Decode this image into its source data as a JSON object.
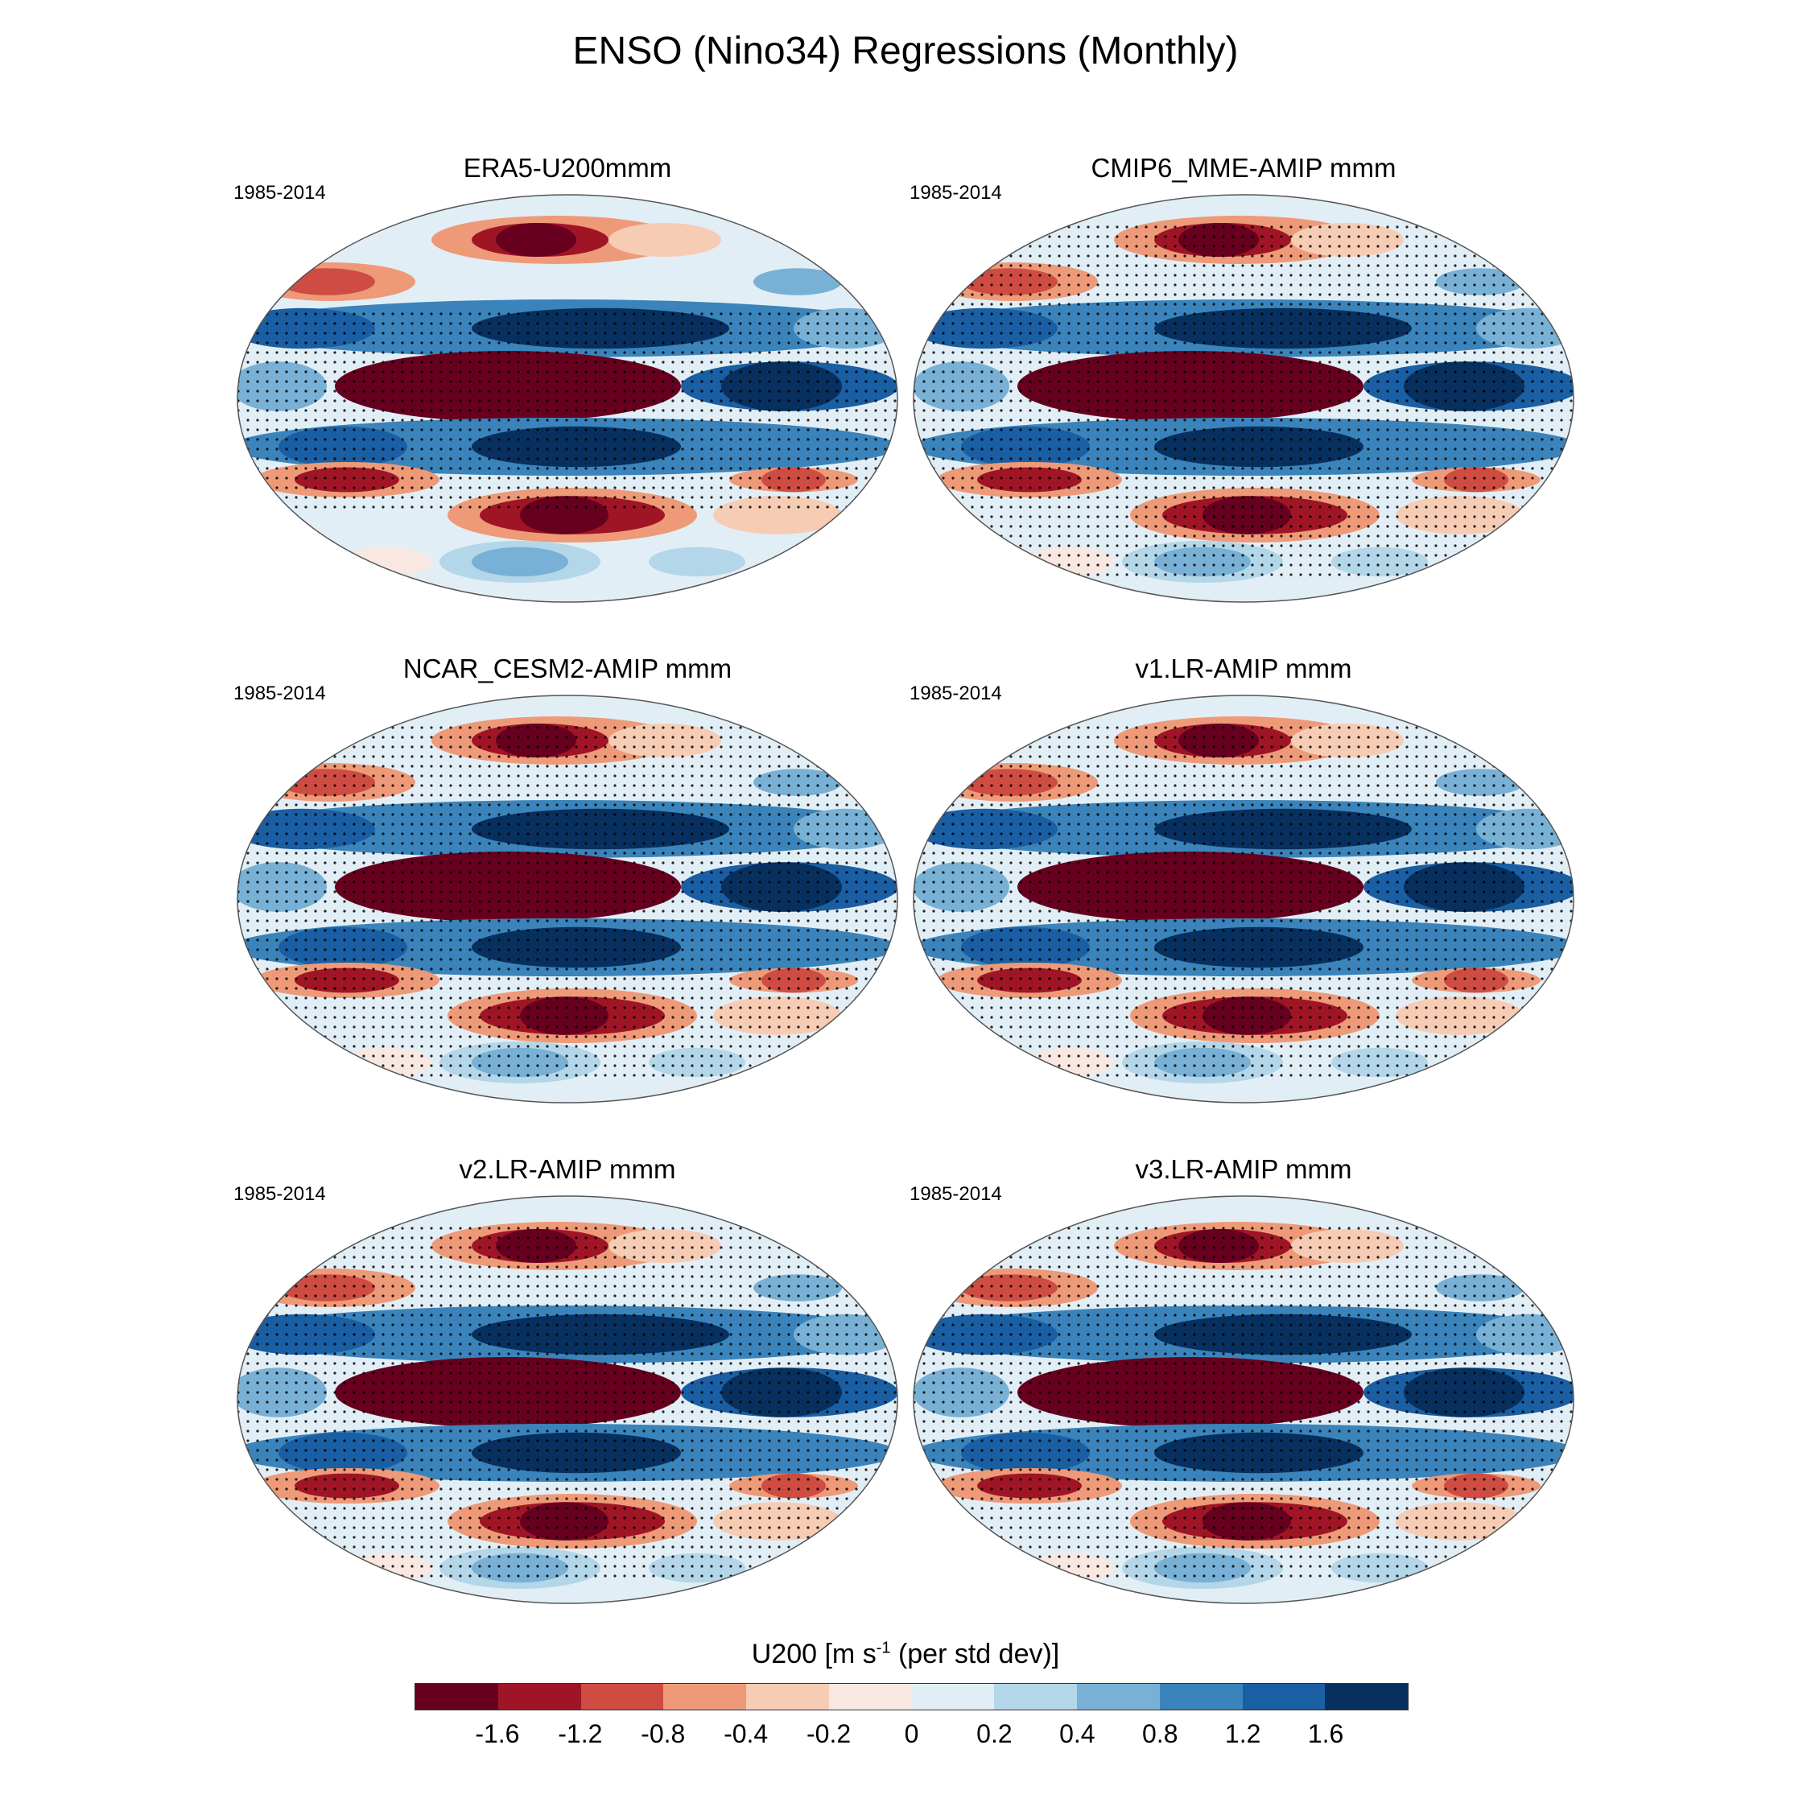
{
  "title": "ENSO (Nino34) Regressions (Monthly)",
  "panels": [
    {
      "title": "ERA5-U200mmm",
      "period": "1985-2014"
    },
    {
      "title": "CMIP6_MME-AMIP  mmm",
      "period": "1985-2014"
    },
    {
      "title": "NCAR_CESM2-AMIP  mmm",
      "period": "1985-2014"
    },
    {
      "title": "v1.LR-AMIP  mmm",
      "period": "1985-2014"
    },
    {
      "title": "v2.LR-AMIP  mmm",
      "period": "1985-2014"
    },
    {
      "title": "v3.LR-AMIP  mmm",
      "period": "1985-2014"
    }
  ],
  "colorbar": {
    "label_main": "U200 [m s",
    "label_sup": "-1",
    "label_tail": " (per std dev)]",
    "colors": [
      "#67001f",
      "#a01525",
      "#cf4c42",
      "#ee9a78",
      "#f7ccb5",
      "#f9e8e1",
      "#e2eef5",
      "#b3d6e9",
      "#78b1d5",
      "#3a84bb",
      "#1a5ea3",
      "#08305f"
    ],
    "ticks": [
      "-1.6",
      "-1.2",
      "-0.8",
      "-0.4",
      "-0.2",
      "0",
      "0.2",
      "0.4",
      "0.8",
      "1.2",
      "1.6"
    ]
  }
}
